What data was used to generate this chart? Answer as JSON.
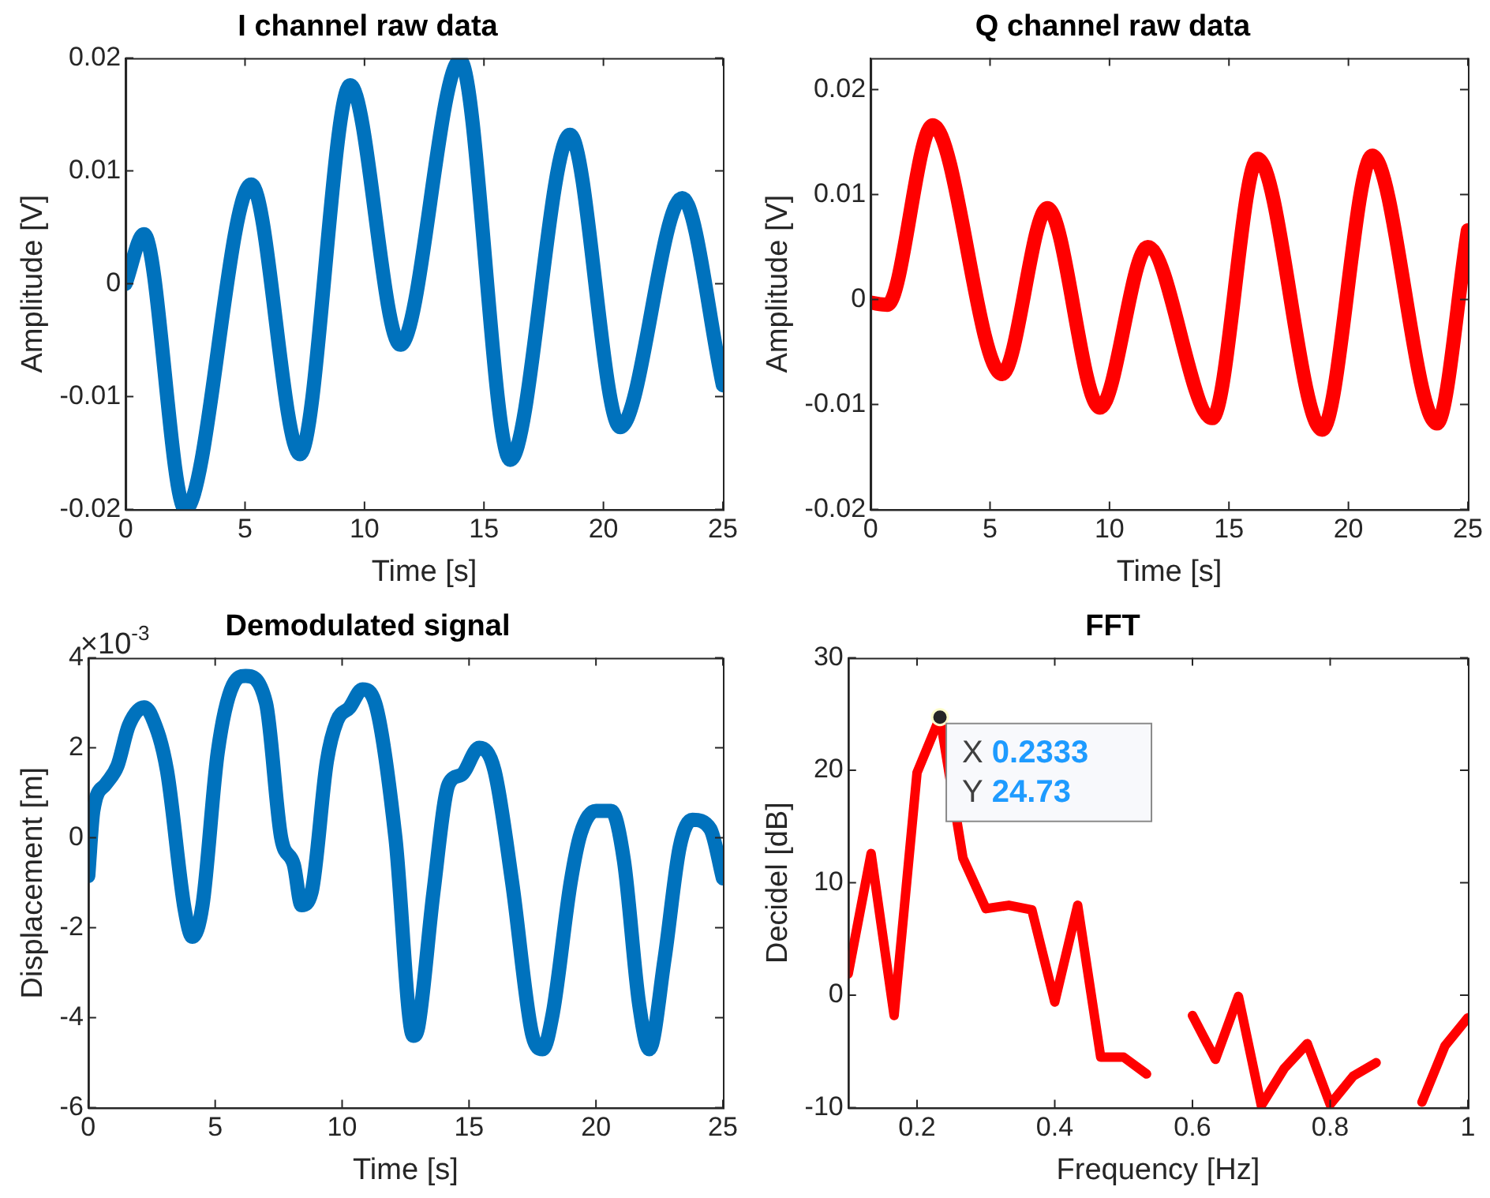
{
  "chart_data": [
    {
      "type": "line",
      "title": "I channel raw data",
      "xlabel": "Time [s]",
      "ylabel": "Amplitude [V]",
      "marker": "none",
      "xlim": [
        0,
        25
      ],
      "ylim": [
        -0.02,
        0.02
      ],
      "xticks": [
        0,
        5,
        10,
        15,
        20,
        25
      ],
      "yticks": [
        -0.02,
        -0.01,
        0,
        0.01,
        0.02
      ],
      "x": [
        0,
        0.77,
        2.5,
        5.26,
        7.3,
        9.4,
        11.5,
        14.0,
        16.1,
        18.6,
        20.7,
        23.3,
        25
      ],
      "series": [
        {
          "color": "#0072bd",
          "values": [
            0,
            0.0044,
            -0.02,
            0.0088,
            -0.0151,
            0.0176,
            -0.0054,
            0.0198,
            -0.0156,
            0.0132,
            -0.0127,
            0.0076,
            -0.009
          ]
        }
      ]
    },
    {
      "type": "line",
      "title": "Q channel raw data",
      "xlabel": "Time [s]",
      "ylabel": "Amplitude [V]",
      "marker": "none",
      "xlim": [
        0,
        25
      ],
      "ylim": [
        -0.02,
        0.023
      ],
      "xticks": [
        0,
        5,
        10,
        15,
        20,
        25
      ],
      "yticks": [
        -0.02,
        -0.01,
        0,
        0.01,
        0.02
      ],
      "x": [
        0,
        0.7,
        2.6,
        5.5,
        7.4,
        9.6,
        11.6,
        14.3,
        16.2,
        18.9,
        21.0,
        23.7,
        25
      ],
      "series": [
        {
          "color": "#ff0000",
          "values": [
            -0.0003,
            -0.0005,
            0.0166,
            -0.0071,
            0.0087,
            -0.0103,
            0.005,
            -0.0113,
            0.0134,
            -0.0124,
            0.0137,
            -0.0118,
            0.0066
          ]
        }
      ]
    },
    {
      "type": "line",
      "title": "Demodulated signal",
      "xlabel": "Time [s]",
      "ylabel": "Displacement [m]",
      "marker": "none",
      "xlim": [
        0,
        25
      ],
      "ylim": [
        -6,
        4
      ],
      "xticks": [
        0,
        5,
        10,
        15,
        20,
        25
      ],
      "yticks": [
        -6,
        -4,
        -2,
        0,
        2,
        4
      ],
      "annotations": [
        "×10$^{-3}$"
      ],
      "x": [
        0,
        0.2,
        0.7,
        1.15,
        1.6,
        2.2,
        2.5,
        3.1,
        3.8,
        4.1,
        4.5,
        5.1,
        5.7,
        6.2,
        7.0,
        7.6,
        8.1,
        8.4,
        8.8,
        9.4,
        9.8,
        10.3,
        10.8,
        11.3,
        12.1,
        12.8,
        13.0,
        13.6,
        14.2,
        14.7,
        15.4,
        16.0,
        16.7,
        17.5,
        17.9,
        18.3,
        19.0,
        19.4,
        20.0,
        20.6,
        21.1,
        21.7,
        22.1,
        22.7,
        23.3,
        23.8,
        24.5,
        25
      ],
      "series": [
        {
          "color": "#0072bd",
          "values": [
            -0.85,
            0.6,
            1.2,
            1.6,
            2.5,
            2.9,
            2.7,
            1.5,
            -1.6,
            -2.2,
            -1.5,
            1.9,
            3.4,
            3.6,
            3.0,
            0.0,
            -0.6,
            -1.5,
            -1.2,
            1.7,
            2.6,
            2.9,
            3.3,
            3.0,
            0.0,
            -4.4,
            -4.2,
            -1.2,
            1.2,
            1.4,
            2.0,
            1.5,
            -1.0,
            -4.4,
            -4.7,
            -3.9,
            -1.0,
            0.1,
            0.6,
            0.6,
            -0.5,
            -3.7,
            -4.7,
            -2.7,
            -0.2,
            0.4,
            0.2,
            -0.9
          ]
        }
      ]
    },
    {
      "type": "line",
      "title": "FFT",
      "xlabel": "Frequency [Hz]",
      "ylabel": "Decidel [dB]",
      "marker": "none",
      "xlim": [
        0.1,
        1
      ],
      "ylim": [
        -10,
        30
      ],
      "xticks": [
        0.2,
        0.4,
        0.6,
        0.8,
        1
      ],
      "yticks": [
        -10,
        0,
        10,
        20,
        30
      ],
      "annotations": [
        {
          "text": "X 0.2333\nY 24.73",
          "x": 0.2333,
          "y": 24.73
        }
      ],
      "x": [
        0.1,
        0.1333,
        0.1667,
        0.2,
        0.2333,
        0.2667,
        0.3,
        0.3333,
        0.3667,
        0.4,
        0.4333,
        0.4667,
        0.5,
        0.5333,
        0.5667,
        0.6,
        0.6333,
        0.6667,
        0.7,
        0.7333,
        0.7667,
        0.8,
        0.8333,
        0.8667,
        0.9,
        0.9333,
        0.9667,
        1.0
      ],
      "series": [
        {
          "color": "#ff0000",
          "values": [
            1.9,
            12.6,
            -1.8,
            19.8,
            24.73,
            12.2,
            7.7,
            8.0,
            7.6,
            -0.6,
            8.0,
            -5.5,
            -5.5,
            -7,
            null,
            -1.8,
            -5.7,
            -0.1,
            -9.8,
            -6.5,
            -4.3,
            -9.7,
            -7.2,
            -6.0,
            null,
            -9.5,
            -4.5,
            -2.0
          ]
        }
      ]
    }
  ]
}
